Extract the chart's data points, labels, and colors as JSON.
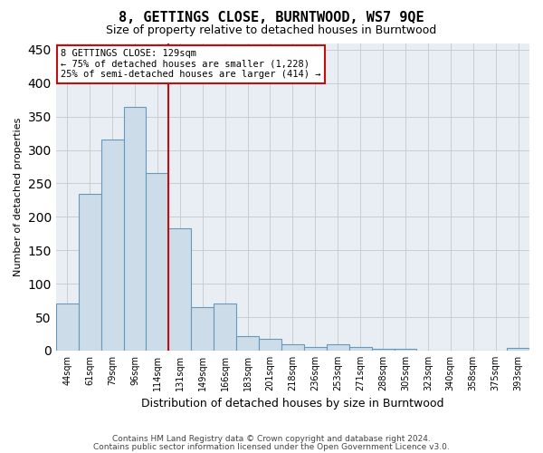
{
  "title": "8, GETTINGS CLOSE, BURNTWOOD, WS7 9QE",
  "subtitle": "Size of property relative to detached houses in Burntwood",
  "xlabel": "Distribution of detached houses by size in Burntwood",
  "ylabel": "Number of detached properties",
  "footnote1": "Contains HM Land Registry data © Crown copyright and database right 2024.",
  "footnote2": "Contains public sector information licensed under the Open Government Licence v3.0.",
  "bar_labels": [
    "44sqm",
    "61sqm",
    "79sqm",
    "96sqm",
    "114sqm",
    "131sqm",
    "149sqm",
    "166sqm",
    "183sqm",
    "201sqm",
    "218sqm",
    "236sqm",
    "253sqm",
    "271sqm",
    "288sqm",
    "305sqm",
    "323sqm",
    "340sqm",
    "358sqm",
    "375sqm",
    "393sqm"
  ],
  "bar_values": [
    70,
    235,
    315,
    365,
    265,
    183,
    65,
    70,
    22,
    18,
    10,
    6,
    10,
    5,
    3,
    3,
    0,
    0,
    0,
    0,
    4
  ],
  "bar_color": "#ccdce8",
  "bar_edge_color": "#6699bb",
  "vline_x": 4.5,
  "vline_color": "#bb1111",
  "annotation_title": "8 GETTINGS CLOSE: 129sqm",
  "annotation_line1": "← 75% of detached houses are smaller (1,228)",
  "annotation_line2": "25% of semi-detached houses are larger (414) →",
  "annotation_box_color": "#ffffff",
  "annotation_box_edge_color": "#bb1111",
  "ylim": [
    0,
    460
  ],
  "yticks": [
    0,
    50,
    100,
    150,
    200,
    250,
    300,
    350,
    400,
    450
  ],
  "grid_color": "#cccccc",
  "background_color": "#e8eef4"
}
